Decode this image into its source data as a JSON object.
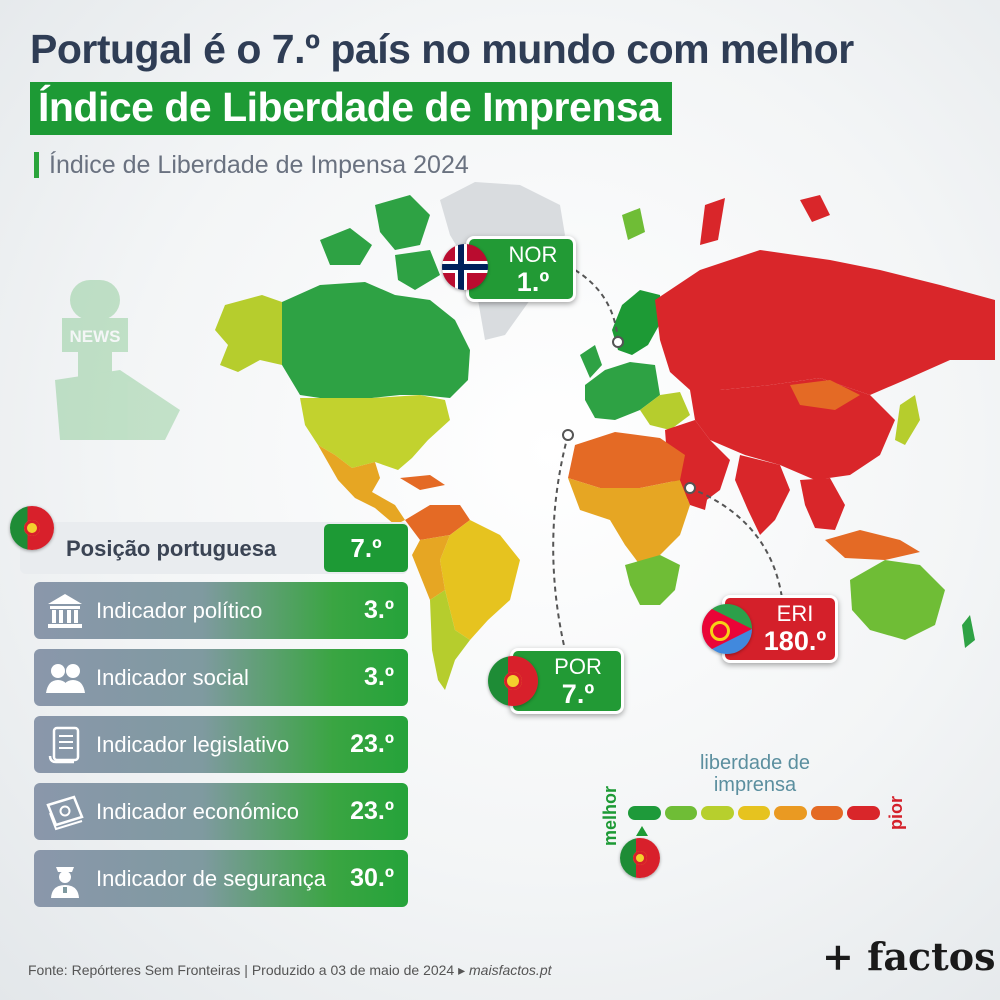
{
  "header": {
    "title_line1": "Portugal é o 7.º país no mundo com melhor",
    "title_line2": "Índice de Liberdade de Imprensa",
    "subtitle": "Índice de Liberdade de Impensa 2024"
  },
  "callouts": {
    "nor": {
      "code": "NOR",
      "rank": "1.º"
    },
    "por": {
      "code": "POR",
      "rank": "7.º"
    },
    "eri": {
      "code": "ERI",
      "rank": "180.º"
    }
  },
  "news_icon_text": "NEWS",
  "portuguese_position": {
    "label": "Posição portuguesa",
    "value": "7.º"
  },
  "indicators": [
    {
      "icon": "government-building-icon",
      "label": "Indicador político",
      "value": "3.º"
    },
    {
      "icon": "people-icon",
      "label": "Indicador social",
      "value": "3.º"
    },
    {
      "icon": "scroll-document-icon",
      "label": "Indicador legislativo",
      "value": "23.º"
    },
    {
      "icon": "money-stack-icon",
      "label": "Indicador económico",
      "value": "23.º"
    },
    {
      "icon": "security-officer-icon",
      "label": "Indicador de segurança",
      "value": "30.º"
    }
  ],
  "legend": {
    "title": "liberdade de imprensa",
    "best": "melhor",
    "worst": "pior",
    "scale_colors": [
      "#1e9a3a",
      "#6fbd36",
      "#b7cf2d",
      "#e6c31f",
      "#ea9a22",
      "#e46a25",
      "#d9262a"
    ]
  },
  "colors": {
    "good": "#1d9a35",
    "satisfactory": "#b6cd2d",
    "problematic": "#e6a623",
    "difficult": "#e46a25",
    "very_serious": "#d9262a",
    "no_data": "#d9dcdf"
  },
  "footer": {
    "source": "Fonte: Repórteres Sem Fronteiras | Produzido a 03 de maio de 2024 ▸ ",
    "site": "maisfactos.pt",
    "brand": "+ factos"
  }
}
